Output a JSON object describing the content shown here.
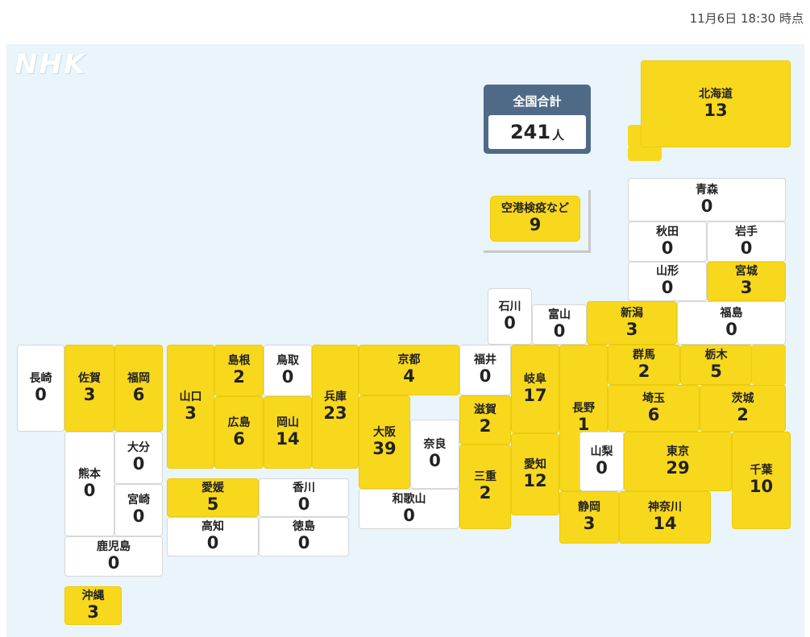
{
  "timestamp": "11月6日 18:30 時点",
  "logo": "NHK",
  "total": {
    "label": "全国合計",
    "value": "241",
    "unit": "人"
  },
  "airport": {
    "name": "空港検疫など",
    "value": 9
  },
  "highlight_color": "#f8d81c",
  "prefectures": {
    "hokkaido": {
      "name": "北海道",
      "value": 13
    },
    "aomori": {
      "name": "青森",
      "value": 0
    },
    "akita": {
      "name": "秋田",
      "value": 0
    },
    "iwate": {
      "name": "岩手",
      "value": 0
    },
    "yamagata": {
      "name": "山形",
      "value": 0
    },
    "miyagi": {
      "name": "宮城",
      "value": 3
    },
    "ishikawa": {
      "name": "石川",
      "value": 0
    },
    "toyama": {
      "name": "富山",
      "value": 0
    },
    "niigata": {
      "name": "新潟",
      "value": 3
    },
    "fukushima": {
      "name": "福島",
      "value": 0
    },
    "nagasaki": {
      "name": "長崎",
      "value": 0
    },
    "saga": {
      "name": "佐賀",
      "value": 3
    },
    "fukuoka": {
      "name": "福岡",
      "value": 6
    },
    "yamaguchi": {
      "name": "山口",
      "value": 3
    },
    "shimane": {
      "name": "島根",
      "value": 2
    },
    "tottori": {
      "name": "鳥取",
      "value": 0
    },
    "hyogo": {
      "name": "兵庫",
      "value": 23
    },
    "kyoto": {
      "name": "京都",
      "value": 4
    },
    "fukui": {
      "name": "福井",
      "value": 0
    },
    "gifu": {
      "name": "岐阜",
      "value": 17
    },
    "nagano": {
      "name": "長野",
      "value": 1
    },
    "gunma": {
      "name": "群馬",
      "value": 2
    },
    "tochigi": {
      "name": "栃木",
      "value": 5
    },
    "hiroshima": {
      "name": "広島",
      "value": 6
    },
    "okayama": {
      "name": "岡山",
      "value": 14
    },
    "osaka": {
      "name": "大阪",
      "value": 39
    },
    "shiga": {
      "name": "滋賀",
      "value": 2
    },
    "saitama": {
      "name": "埼玉",
      "value": 6
    },
    "ibaraki": {
      "name": "茨城",
      "value": 2
    },
    "kumamoto": {
      "name": "熊本",
      "value": 0
    },
    "oita": {
      "name": "大分",
      "value": 0
    },
    "miyazaki": {
      "name": "宮崎",
      "value": 0
    },
    "nara": {
      "name": "奈良",
      "value": 0
    },
    "mie": {
      "name": "三重",
      "value": 2
    },
    "aichi": {
      "name": "愛知",
      "value": 12
    },
    "yamanashi": {
      "name": "山梨",
      "value": 0
    },
    "tokyo": {
      "name": "東京",
      "value": 29
    },
    "chiba": {
      "name": "千葉",
      "value": 10
    },
    "ehime": {
      "name": "愛媛",
      "value": 5
    },
    "kagawa": {
      "name": "香川",
      "value": 0
    },
    "kochi": {
      "name": "高知",
      "value": 0
    },
    "tokushima": {
      "name": "徳島",
      "value": 0
    },
    "wakayama": {
      "name": "和歌山",
      "value": 0
    },
    "shizuoka": {
      "name": "静岡",
      "value": 3
    },
    "kanagawa": {
      "name": "神奈川",
      "value": 14
    },
    "kagoshima": {
      "name": "鹿児島",
      "value": 0
    },
    "okinawa": {
      "name": "沖縄",
      "value": 3
    }
  }
}
